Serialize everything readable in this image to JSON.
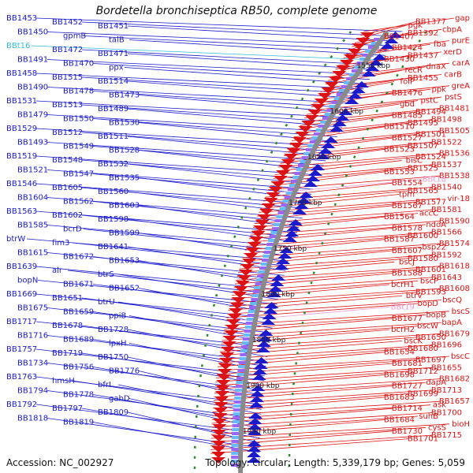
{
  "title": "Bordetella bronchiseptica RB50, complete genome",
  "accession_text": "Accession: NC_002927",
  "summary_text": "Topology: circular; Length: 5,339,179 bp; Genes: 5,059",
  "colors": {
    "left_genes": "#1a1acc",
    "right_genes": "#dd1111",
    "highlight": "#33bbdd",
    "pink": "#ee99cc",
    "backbone": "#8a8a8a",
    "ticks": "#2a8a2a"
  },
  "kbp_ticks": [
    {
      "label": "1550 kbp"
    },
    {
      "label": "1600 kbp"
    },
    {
      "label": "1650 kbp"
    },
    {
      "label": "1700 kbp"
    },
    {
      "label": "1750 kbp"
    },
    {
      "label": "1800 kbp"
    },
    {
      "label": "1850 kbp"
    },
    {
      "label": "1900 kbp"
    },
    {
      "label": "1950 kbp"
    }
  ],
  "left_labels": [
    "BB1453",
    "BB1452",
    "BB1451",
    "BB1450",
    "gpmB",
    "talB",
    "BBt16",
    "BB1472",
    "BB1471",
    "BB1491",
    "BB1470",
    "ppx",
    "BB1458",
    "BB1515",
    "BB1514",
    "BB1490",
    "BB1478",
    "BB1473",
    "BB1531",
    "BB1513",
    "BB1489",
    "BB1479",
    "BB1550",
    "BB1530",
    "BB1529",
    "BB1512",
    "BB1511",
    "BB1493",
    "BB1549",
    "BB1528",
    "BB1519",
    "BB1548",
    "BB1532",
    "BB1521",
    "BB1547",
    "BB1535",
    "BB1546",
    "BB1605",
    "BB1560",
    "BB1604",
    "BB1562",
    "BB1603",
    "BB1563",
    "BB1602",
    "BB1598",
    "BB1585",
    "bcrD",
    "BB1599",
    "btrW",
    "fim3",
    "BB1641",
    "BB1615",
    "BB1672",
    "BB1653",
    "BB1639",
    "alr",
    "btrS",
    "bopN",
    "BB1671",
    "BB1652",
    "BB1669",
    "BB1651",
    "btrU",
    "BB1675",
    "BB1659",
    "ppiB",
    "BB1717",
    "BB1678",
    "BB1728",
    "BB1716",
    "BB1689",
    "lpxH",
    "BB1757",
    "BB1719",
    "BB1750",
    "BB1734",
    "BB1756",
    "BB1776",
    "BB1763",
    "hmsH",
    "bfrI",
    "BB1794",
    "BB1778",
    "gabD",
    "BB1792",
    "BB1797",
    "BB1809",
    "BB1818",
    "BB1819"
  ],
  "right_labels": [
    "gap",
    "BB1377",
    "pgk",
    "cbpA",
    "BB1392",
    "BB1407",
    "purE",
    "fba",
    "BB1424",
    "xerD",
    "BB1437",
    "BB1430",
    "carA",
    "dnaX",
    "recR",
    "carB",
    "BB1455",
    "folP",
    "greA",
    "ppk",
    "BB1476",
    "pstS",
    "pstC",
    "gbd",
    "BB1481",
    "BB1494",
    "BB1485",
    "BB1498",
    "BB1495",
    "BB1510",
    "BB1505",
    "BB1501",
    "BB1527",
    "BB1522",
    "BB1507",
    "BB1523",
    "BB1536",
    "BB1524",
    "bisC",
    "BB1537",
    "BB1525",
    "BB1553",
    "BB1538",
    "BBt18",
    "BB1554",
    "BB1540",
    "BB1565",
    "tpm",
    "vir-18",
    "BB1577",
    "BB1567",
    "BB1581",
    "accC",
    "BB1564",
    "BB1590",
    "ndoA",
    "BB1578",
    "BB1566",
    "BB1600",
    "BB1587",
    "BB1574",
    "bsp22",
    "BB1607",
    "BB1592",
    "BB1580",
    "bscJ",
    "BB1618",
    "BB1601",
    "BB1588",
    "BB1643",
    "bscP",
    "bcrH1",
    "BB1608",
    "BB1593",
    "btrV",
    "bscQ",
    "bopD",
    "BBt19",
    "bscS",
    "bopB",
    "BB1677",
    "bapA",
    "bscW",
    "bcrH2",
    "BB1679",
    "BB1650",
    "bscK",
    "BB1696",
    "BB1680",
    "BB1654",
    "bscC",
    "BB1697",
    "BB1681",
    "BB1655",
    "BB1712",
    "BB1698",
    "BB1682",
    "dapA",
    "BB1727",
    "BB1713",
    "BB1699",
    "BB1683",
    "BB1657",
    "ask",
    "BB1714",
    "BB1700",
    "suhB",
    "BB1684",
    "bioH",
    "cysS",
    "BB1730",
    "BB1715",
    "BB1701"
  ]
}
